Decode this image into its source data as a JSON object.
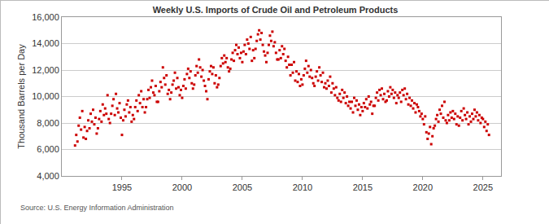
{
  "chart_data": {
    "type": "scatter",
    "title": "Weekly U.S. Imports of Crude Oil and Petroleum Products",
    "y_label": "Thousand Barrels per Day",
    "annotation": "Source: U.S. Energy Information Administration",
    "color": "#cc0000",
    "marker": "square",
    "grid": true,
    "xlim": [
      1990,
      2026.5
    ],
    "xticks": [
      1995,
      2000,
      2005,
      2010,
      2015,
      2020,
      2025
    ],
    "ylim": [
      4000,
      16000
    ],
    "yticks": [
      {
        "value": 4000,
        "label": "4,000"
      },
      {
        "value": 6000,
        "label": "6,000"
      },
      {
        "value": 8000,
        "label": "8,000"
      },
      {
        "value": 10000,
        "label": "10,000"
      },
      {
        "value": 12000,
        "label": "12,000"
      },
      {
        "value": 14000,
        "label": "14,000"
      },
      {
        "value": 16000,
        "label": "16,000"
      }
    ],
    "x": [
      1991.1,
      1991.2,
      1991.3,
      1991.4,
      1991.5,
      1991.6,
      1991.7,
      1991.8,
      1991.9,
      1992.0,
      1992.1,
      1992.2,
      1992.3,
      1992.4,
      1992.5,
      1992.6,
      1992.7,
      1992.8,
      1992.9,
      1993.0,
      1993.1,
      1993.2,
      1993.3,
      1993.4,
      1993.5,
      1993.6,
      1993.7,
      1993.8,
      1993.9,
      1994.0,
      1994.1,
      1994.2,
      1994.3,
      1994.4,
      1994.5,
      1994.6,
      1994.7,
      1994.8,
      1994.9,
      1995.0,
      1995.1,
      1995.2,
      1995.3,
      1995.4,
      1995.5,
      1995.6,
      1995.7,
      1995.8,
      1995.9,
      1996.0,
      1996.1,
      1996.2,
      1996.3,
      1996.4,
      1996.5,
      1996.6,
      1996.7,
      1996.8,
      1996.9,
      1997.0,
      1997.1,
      1997.2,
      1997.3,
      1997.4,
      1997.5,
      1997.6,
      1997.7,
      1997.8,
      1997.9,
      1998.0,
      1998.1,
      1998.2,
      1998.3,
      1998.4,
      1998.5,
      1998.6,
      1998.7,
      1998.8,
      1998.9,
      1999.0,
      1999.1,
      1999.2,
      1999.3,
      1999.4,
      1999.5,
      1999.6,
      1999.7,
      1999.8,
      1999.9,
      2000.0,
      2000.1,
      2000.2,
      2000.3,
      2000.4,
      2000.5,
      2000.6,
      2000.7,
      2000.8,
      2000.9,
      2001.0,
      2001.1,
      2001.2,
      2001.3,
      2001.4,
      2001.5,
      2001.6,
      2001.7,
      2001.8,
      2001.9,
      2002.0,
      2002.1,
      2002.2,
      2002.3,
      2002.4,
      2002.5,
      2002.6,
      2002.7,
      2002.8,
      2002.9,
      2003.0,
      2003.1,
      2003.2,
      2003.3,
      2003.4,
      2003.5,
      2003.6,
      2003.7,
      2003.8,
      2003.9,
      2004.0,
      2004.1,
      2004.2,
      2004.3,
      2004.4,
      2004.5,
      2004.6,
      2004.7,
      2004.8,
      2004.9,
      2005.0,
      2005.1,
      2005.2,
      2005.3,
      2005.4,
      2005.5,
      2005.6,
      2005.7,
      2005.8,
      2005.9,
      2006.0,
      2006.1,
      2006.2,
      2006.3,
      2006.4,
      2006.5,
      2006.6,
      2006.7,
      2006.8,
      2006.9,
      2007.0,
      2007.1,
      2007.2,
      2007.3,
      2007.4,
      2007.5,
      2007.6,
      2007.7,
      2007.8,
      2007.9,
      2008.0,
      2008.1,
      2008.2,
      2008.3,
      2008.4,
      2008.5,
      2008.6,
      2008.7,
      2008.8,
      2008.9,
      2009.0,
      2009.1,
      2009.2,
      2009.3,
      2009.4,
      2009.5,
      2009.6,
      2009.7,
      2009.8,
      2009.9,
      2010.0,
      2010.1,
      2010.2,
      2010.3,
      2010.4,
      2010.5,
      2010.6,
      2010.7,
      2010.8,
      2010.9,
      2011.0,
      2011.1,
      2011.2,
      2011.3,
      2011.4,
      2011.5,
      2011.6,
      2011.7,
      2011.8,
      2011.9,
      2012.0,
      2012.1,
      2012.2,
      2012.3,
      2012.4,
      2012.5,
      2012.6,
      2012.7,
      2012.8,
      2012.9,
      2013.0,
      2013.1,
      2013.2,
      2013.3,
      2013.4,
      2013.5,
      2013.6,
      2013.7,
      2013.8,
      2013.9,
      2014.0,
      2014.1,
      2014.2,
      2014.3,
      2014.4,
      2014.5,
      2014.6,
      2014.7,
      2014.8,
      2014.9,
      2015.0,
      2015.1,
      2015.2,
      2015.3,
      2015.4,
      2015.5,
      2015.6,
      2015.7,
      2015.8,
      2015.9,
      2016.0,
      2016.1,
      2016.2,
      2016.3,
      2016.4,
      2016.5,
      2016.6,
      2016.7,
      2016.8,
      2016.9,
      2017.0,
      2017.1,
      2017.2,
      2017.3,
      2017.4,
      2017.5,
      2017.6,
      2017.7,
      2017.8,
      2017.9,
      2018.0,
      2018.1,
      2018.2,
      2018.3,
      2018.4,
      2018.5,
      2018.6,
      2018.7,
      2018.8,
      2018.9,
      2019.0,
      2019.1,
      2019.2,
      2019.3,
      2019.4,
      2019.5,
      2019.6,
      2019.7,
      2019.8,
      2019.9,
      2020.0,
      2020.1,
      2020.2,
      2020.3,
      2020.4,
      2020.5,
      2020.6,
      2020.7,
      2020.8,
      2020.9,
      2021.0,
      2021.1,
      2021.2,
      2021.3,
      2021.4,
      2021.5,
      2021.6,
      2021.7,
      2021.8,
      2021.9,
      2022.0,
      2022.1,
      2022.2,
      2022.3,
      2022.4,
      2022.5,
      2022.6,
      2022.7,
      2022.8,
      2022.9,
      2023.0,
      2023.1,
      2023.2,
      2023.3,
      2023.4,
      2023.5,
      2023.6,
      2023.7,
      2023.8,
      2023.9,
      2024.0,
      2024.1,
      2024.2,
      2024.3,
      2024.4,
      2024.5,
      2024.6,
      2024.7,
      2024.8,
      2024.9,
      2025.0,
      2025.1,
      2025.2,
      2025.3,
      2025.4,
      2025.5
    ],
    "values": [
      6300,
      7100,
      6600,
      7800,
      8400,
      7500,
      8900,
      6900,
      7700,
      6800,
      7400,
      8200,
      7600,
      8700,
      8100,
      9000,
      7900,
      8400,
      7200,
      7600,
      8300,
      8900,
      8100,
      9400,
      8600,
      9100,
      8700,
      10100,
      8300,
      8000,
      8700,
      9300,
      9800,
      8600,
      10200,
      9100,
      8800,
      9500,
      8400,
      7100,
      8200,
      9000,
      8500,
      9400,
      9700,
      8800,
      9200,
      8100,
      8600,
      8300,
      9200,
      9700,
      8900,
      10100,
      9500,
      10400,
      9200,
      9800,
      8800,
      9200,
      9800,
      10500,
      9900,
      10700,
      11200,
      10300,
      10100,
      10800,
      9600,
      9600,
      10400,
      11100,
      10700,
      12200,
      11400,
      10900,
      11600,
      10200,
      10500,
      9800,
      10300,
      10900,
      11200,
      11800,
      10600,
      11400,
      10700,
      10100,
      10500,
      9900,
      10800,
      11300,
      10600,
      11700,
      12100,
      11400,
      11900,
      11000,
      10600,
      10900,
      11600,
      12300,
      11800,
      12800,
      12200,
      11500,
      12000,
      11200,
      10800,
      10400,
      9800,
      11300,
      11900,
      12300,
      11700,
      12200,
      11000,
      11600,
      10700,
      10900,
      11400,
      12300,
      12900,
      12500,
      13100,
      12600,
      12900,
      12200,
      11900,
      12100,
      12800,
      13300,
      12700,
      13500,
      13900,
      13200,
      13700,
      12900,
      13300,
      12600,
      13400,
      13900,
      13200,
      14300,
      14000,
      13600,
      14500,
      12700,
      13500,
      12900,
      13600,
      14200,
      14700,
      15000,
      14300,
      14800,
      13900,
      13400,
      13100,
      12600,
      13300,
      13900,
      14600,
      14200,
      14900,
      13800,
      14100,
      13300,
      12800,
      12800,
      13500,
      12900,
      13800,
      13200,
      13600,
      12700,
      12200,
      13000,
      12400,
      11600,
      12400,
      11800,
      12600,
      11200,
      11900,
      11100,
      11700,
      10800,
      11300,
      10900,
      11600,
      12100,
      12700,
      11800,
      12300,
      11500,
      12000,
      11400,
      11000,
      10800,
      11500,
      11900,
      11200,
      12200,
      11600,
      11100,
      11800,
      10700,
      11000,
      10600,
      11200,
      10800,
      11500,
      10300,
      11000,
      10600,
      10100,
      10700,
      9900,
      9700,
      10200,
      9600,
      10500,
      9900,
      10300,
      9500,
      10000,
      9300,
      9600,
      9100,
      9600,
      8800,
      9900,
      9300,
      9700,
      9000,
      9400,
      8600,
      9200,
      8900,
      9500,
      9200,
      9800,
      9100,
      10000,
      9400,
      9600,
      8700,
      9300,
      9300,
      9900,
      10300,
      9700,
      10500,
      10100,
      10600,
      9800,
      10200,
      9600,
      9700,
      10400,
      10000,
      10700,
      10200,
      10500,
      9900,
      10300,
      9500,
      10100,
      9900,
      10300,
      9600,
      10500,
      10100,
      10600,
      9800,
      10200,
      9400,
      9900,
      9300,
      9700,
      9100,
      9500,
      8800,
      9400,
      9200,
      8900,
      8500,
      8700,
      8300,
      7900,
      8500,
      7300,
      6800,
      7200,
      7700,
      6400,
      7000,
      7600,
      7800,
      8300,
      8600,
      8100,
      9000,
      8700,
      9300,
      8400,
      9600,
      8200,
      8000,
      8600,
      8200,
      8800,
      8400,
      8900,
      8300,
      8700,
      7900,
      8500,
      7800,
      8400,
      8900,
      8200,
      9100,
      8600,
      8300,
      8800,
      7900,
      8500,
      8100,
      8700,
      8300,
      9000,
      8500,
      8800,
      8200,
      8600,
      8000,
      8400,
      8300,
      7700,
      8100,
      7400,
      7900,
      7100
    ]
  }
}
